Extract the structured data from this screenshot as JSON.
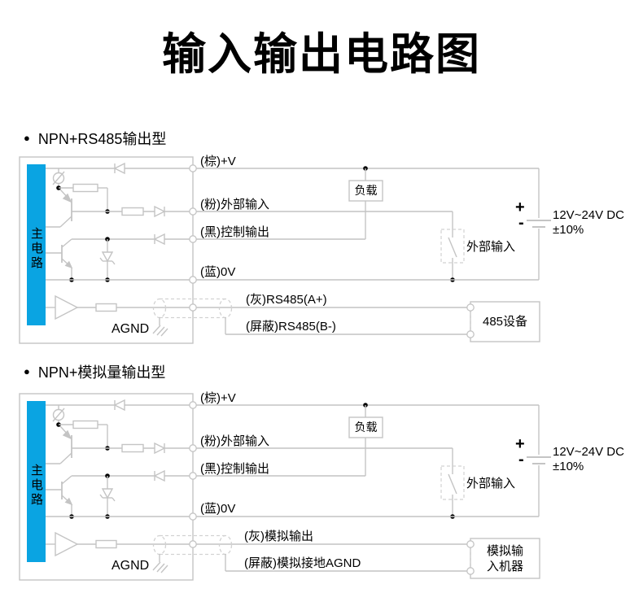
{
  "title": "输入输出电路图",
  "colors": {
    "cyan": "#0aa4e2",
    "wire": "#c4c4c4",
    "dash": "#d2d2d2",
    "dot": "#000000"
  },
  "sections": [
    {
      "heading_bullet": "●",
      "heading": "NPN+RS485输出型",
      "main_block": "主电路",
      "wire_labels": {
        "brown": "(棕)+V",
        "pink": "(粉)外部输入",
        "black": "(黑)控制输出",
        "blue": "(蓝)0V",
        "gray": "(灰)RS485(A+)",
        "shield": "(屏蔽)RS485(B-)"
      },
      "load": "负载",
      "external_input": "外部输入",
      "agnd": "AGND",
      "supply": {
        "plus": "+",
        "minus": "-",
        "voltage": "12V~24V DC",
        "tolerance": "±10%"
      },
      "device_lines": [
        "485设备"
      ]
    },
    {
      "heading_bullet": "●",
      "heading": "NPN+模拟量输出型",
      "main_block": "主电路",
      "wire_labels": {
        "brown": "(棕)+V",
        "pink": "(粉)外部输入",
        "black": "(黑)控制输出",
        "blue": "(蓝)0V",
        "gray": "(灰)模拟输出",
        "shield": "(屏蔽)模拟接地AGND"
      },
      "load": "负载",
      "external_input": "外部输入",
      "agnd": "AGND",
      "supply": {
        "plus": "+",
        "minus": "-",
        "voltage": "12V~24V DC",
        "tolerance": "±10%"
      },
      "device_lines": [
        "模拟输",
        "入机器"
      ]
    }
  ]
}
